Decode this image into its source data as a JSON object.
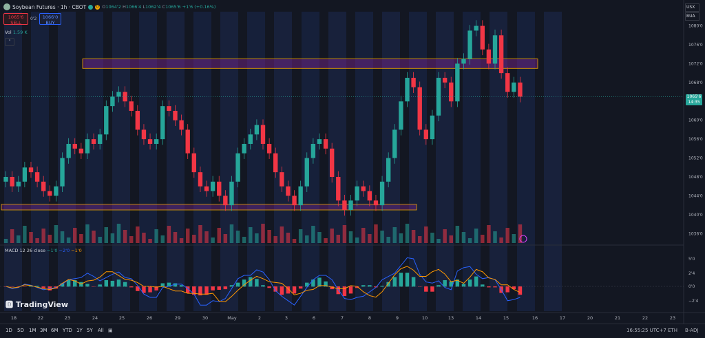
{
  "header": {
    "title": "Soybean Futures · 1h · CBOT",
    "badge_d": "D",
    "ohlc_o_label": "O",
    "ohlc_o": "1064'2",
    "ohlc_h_label": "H",
    "ohlc_h": "1066'4",
    "ohlc_l_label": "L",
    "ohlc_l": "1062'4",
    "ohlc_c_label": "C",
    "ohlc_c": "1065'6",
    "ohlc_change": "+1'6 (+0.16%)"
  },
  "trade": {
    "sell_price": "1065'6",
    "sell_label": "SELL",
    "spread": "0'2",
    "buy_price": "1066'0",
    "buy_label": "BUY"
  },
  "volume": {
    "label": "Vol",
    "value": "1.59 K"
  },
  "macd": {
    "label": "MACD 12 26 close",
    "v1": "−1'0",
    "v2": "−2'0",
    "v3": "−1'0"
  },
  "currency": {
    "usx": "USX",
    "bua": "BUA"
  },
  "price_axis": {
    "ticks": [
      "1080'0",
      "1076'0",
      "1072'0",
      "1068'0",
      "1060'0",
      "1056'0",
      "1052'0",
      "1048'0",
      "1044'0",
      "1040'0",
      "1036'0"
    ],
    "current_price": "1065'6",
    "countdown": "14:35"
  },
  "macd_axis": {
    "ticks": [
      "5'0",
      "2'4",
      "0'0",
      "−2'4"
    ]
  },
  "time_axis": {
    "labels": [
      "18",
      "22",
      "23",
      "24",
      "25",
      "26",
      "29",
      "30",
      "May",
      "2",
      "3",
      "6",
      "7",
      "8",
      "9",
      "10",
      "13",
      "14",
      "15",
      "16",
      "17",
      "20",
      "21",
      "22",
      "23"
    ]
  },
  "branding": {
    "logo_text": "TradingView"
  },
  "bottom_bar": {
    "ranges": [
      "1D",
      "5D",
      "1M",
      "3M",
      "6M",
      "YTD",
      "1Y",
      "5Y",
      "All"
    ],
    "clock": "16:55:25 UTC+7",
    "session": "ETH",
    "adj": "B-ADJ"
  },
  "colors": {
    "background": "#131722",
    "up": "#26a69a",
    "down": "#f23645",
    "zone_border": "#f0a500",
    "macd_line": "#2962ff",
    "signal_line": "#ff9800"
  },
  "chart_data": {
    "type": "candlestick",
    "price_range": [
      1034,
      1083
    ],
    "zones": [
      {
        "from": 1071,
        "to": 1073
      },
      {
        "from": 1041,
        "to": 1042.2
      }
    ],
    "closes": [
      1048,
      1046,
      1047,
      1050,
      1049,
      1047,
      1045,
      1044,
      1046,
      1052,
      1055,
      1054,
      1053,
      1056,
      1055,
      1057,
      1063,
      1065,
      1066,
      1064,
      1062,
      1058,
      1056,
      1055,
      1056,
      1063,
      1062,
      1060,
      1058,
      1053,
      1049,
      1046,
      1045,
      1047,
      1044,
      1042,
      1047,
      1053,
      1055,
      1057,
      1059,
      1055,
      1053,
      1049,
      1046,
      1044,
      1042,
      1046,
      1052,
      1055,
      1056,
      1054,
      1048,
      1043,
      1041,
      1043,
      1046,
      1045,
      1043,
      1042,
      1047,
      1052,
      1058,
      1064,
      1069,
      1067,
      1058,
      1056,
      1061,
      1069,
      1068,
      1064,
      1072,
      1073,
      1079,
      1080,
      1075,
      1072,
      1078,
      1070,
      1066,
      1068,
      1065
    ]
  }
}
